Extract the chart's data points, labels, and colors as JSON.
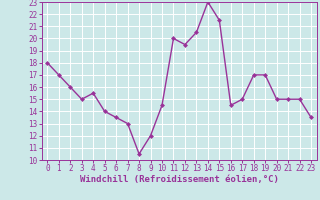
{
  "x": [
    0,
    1,
    2,
    3,
    4,
    5,
    6,
    7,
    8,
    9,
    10,
    11,
    12,
    13,
    14,
    15,
    16,
    17,
    18,
    19,
    20,
    21,
    22,
    23
  ],
  "y": [
    18,
    17,
    16,
    15,
    15.5,
    14,
    13.5,
    13,
    10.5,
    12,
    14.5,
    20,
    19.5,
    20.5,
    23,
    21.5,
    14.5,
    15,
    17,
    17,
    15,
    15,
    15,
    13.5
  ],
  "line_color": "#993399",
  "marker": "D",
  "marker_size": 2.0,
  "bg_color": "#cce8e8",
  "grid_color": "#ffffff",
  "xlabel": "Windchill (Refroidissement éolien,°C)",
  "xlim": [
    -0.5,
    23.5
  ],
  "ylim": [
    10,
    23
  ],
  "yticks": [
    10,
    11,
    12,
    13,
    14,
    15,
    16,
    17,
    18,
    19,
    20,
    21,
    22,
    23
  ],
  "xticks": [
    0,
    1,
    2,
    3,
    4,
    5,
    6,
    7,
    8,
    9,
    10,
    11,
    12,
    13,
    14,
    15,
    16,
    17,
    18,
    19,
    20,
    21,
    22,
    23
  ],
  "tick_label_size": 5.5,
  "xlabel_size": 6.5,
  "line_width": 1.0
}
